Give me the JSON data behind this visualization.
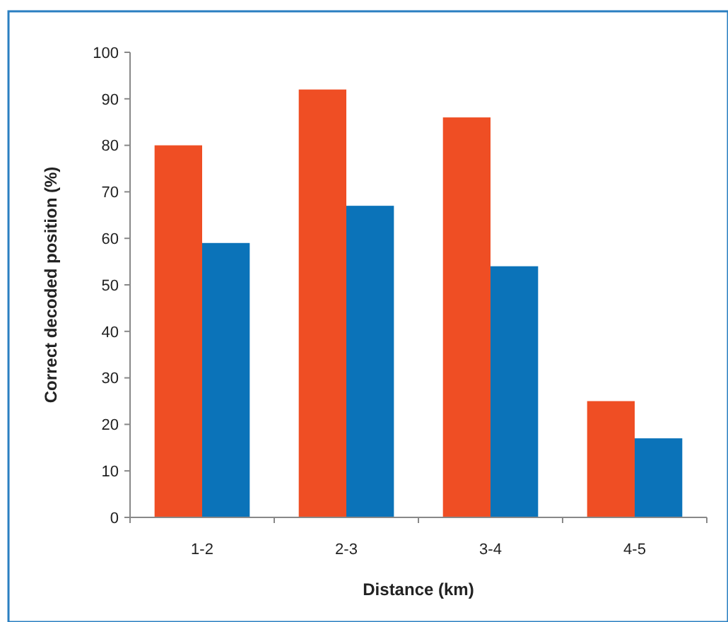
{
  "chart_data": {
    "type": "bar",
    "xlabel": "Distance (km)",
    "ylabel": "Correct decoded position (%)",
    "categories": [
      "1-2",
      "2-3",
      "3-4",
      "4-5"
    ],
    "series": [
      {
        "color": "#ef4e24",
        "values": [
          80,
          92,
          86,
          25
        ]
      },
      {
        "color": "#0b73b9",
        "values": [
          59,
          67,
          54,
          17
        ]
      }
    ],
    "ylim": [
      0,
      100
    ],
    "yticks": [
      0,
      10,
      20,
      30,
      40,
      50,
      60,
      70,
      80,
      90,
      100
    ],
    "grid": false
  }
}
